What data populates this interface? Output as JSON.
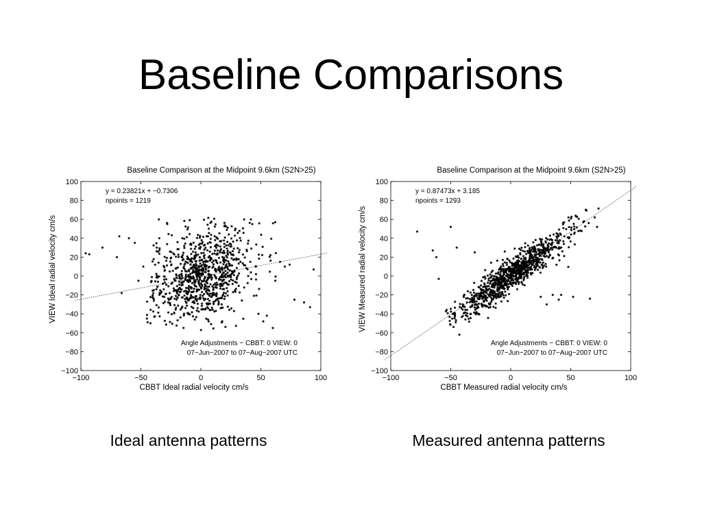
{
  "slide": {
    "title": "Baseline Comparisons",
    "captions": [
      "Ideal antenna patterns",
      "Measured antenna patterns"
    ]
  },
  "chart_data": [
    {
      "type": "scatter",
      "title": "Baseline Comparison at the Midpoint 9.6km (S2N>25)",
      "xlabel": "CBBT Ideal radial velocity cm/s",
      "ylabel": "VIEW Ideal radial velocity cm/s",
      "xlim": [
        -100,
        100
      ],
      "ylim": [
        -100,
        100
      ],
      "xticks": [
        -100,
        -50,
        0,
        50,
        100
      ],
      "yticks": [
        -100,
        -80,
        -60,
        -40,
        -20,
        0,
        20,
        40,
        60,
        80,
        100
      ],
      "grid": false,
      "marker": "*",
      "annotations": {
        "equation": "y = 0.23821x + −0.7306",
        "npoints": "npoints = 1219",
        "adjustments": "Angle Adjustments − CBBT: 0   VIEW: 0",
        "date_range": "07−Jun−2007 to 07−Aug−2007 UTC"
      },
      "fit": {
        "slope": 0.23821,
        "intercept": -0.7306
      },
      "points": {
        "n": 1219,
        "spread": "broad cloud centred near (0, 0); x mostly −40..40, y mostly −55..60",
        "outliers": [
          [
            -96,
            24
          ],
          [
            -93,
            23
          ],
          [
            -82,
            30
          ],
          [
            -70,
            20
          ],
          [
            -68,
            42
          ],
          [
            -66,
            -18
          ],
          [
            -60,
            40
          ],
          [
            -55,
            35
          ],
          [
            -52,
            -5
          ],
          [
            -48,
            10
          ],
          [
            -45,
            -45
          ],
          [
            -42,
            -50
          ],
          [
            -35,
            60
          ],
          [
            -28,
            55
          ],
          [
            62,
            57
          ],
          [
            60,
            -55
          ],
          [
            58,
            22
          ],
          [
            62,
            -5
          ],
          [
            66,
            15
          ],
          [
            70,
            10
          ],
          [
            74,
            12
          ],
          [
            78,
            -25
          ],
          [
            86,
            -28
          ],
          [
            91,
            -33
          ],
          [
            94,
            7
          ],
          [
            55,
            -42
          ],
          [
            52,
            -48
          ],
          [
            48,
            -40
          ]
        ]
      }
    },
    {
      "type": "scatter",
      "title": "Baseline Comparison at the Midpoint 9.6km (S2N>25)",
      "xlabel": "CBBT Measured radial velocity cm/s",
      "ylabel": "VIEW Measured radial velocity cm/s",
      "xlim": [
        -100,
        100
      ],
      "ylim": [
        -100,
        100
      ],
      "xticks": [
        -100,
        -50,
        0,
        50,
        100
      ],
      "yticks": [
        -100,
        -80,
        -60,
        -40,
        -20,
        0,
        20,
        40,
        60,
        80,
        100
      ],
      "grid": false,
      "marker": "*",
      "annotations": {
        "equation": "y = 0.87473x + 3.185",
        "npoints": "npoints = 1293",
        "adjustments": "Angle Adjustments − CBBT: 0   VIEW: 0",
        "date_range": "07−Jun−2007 to 07−Aug−2007 UTC"
      },
      "fit": {
        "slope": 0.87473,
        "intercept": 3.185
      },
      "points": {
        "n": 1293,
        "spread": "tight elongated cloud along the fit line from about (−50, −45) to (65, 60)",
        "outliers": [
          [
            -78,
            47
          ],
          [
            -65,
            27
          ],
          [
            -62,
            20
          ],
          [
            -60,
            -3
          ],
          [
            -50,
            52
          ],
          [
            -45,
            30
          ],
          [
            -40,
            -30
          ],
          [
            -30,
            25
          ],
          [
            25,
            -22
          ],
          [
            30,
            -30
          ],
          [
            35,
            -20
          ],
          [
            40,
            -25
          ],
          [
            42,
            -20
          ],
          [
            52,
            -22
          ],
          [
            58,
            48
          ],
          [
            66,
            -24
          ],
          [
            70,
            62
          ],
          [
            72,
            52
          ],
          [
            65,
            56
          ]
        ]
      }
    }
  ]
}
